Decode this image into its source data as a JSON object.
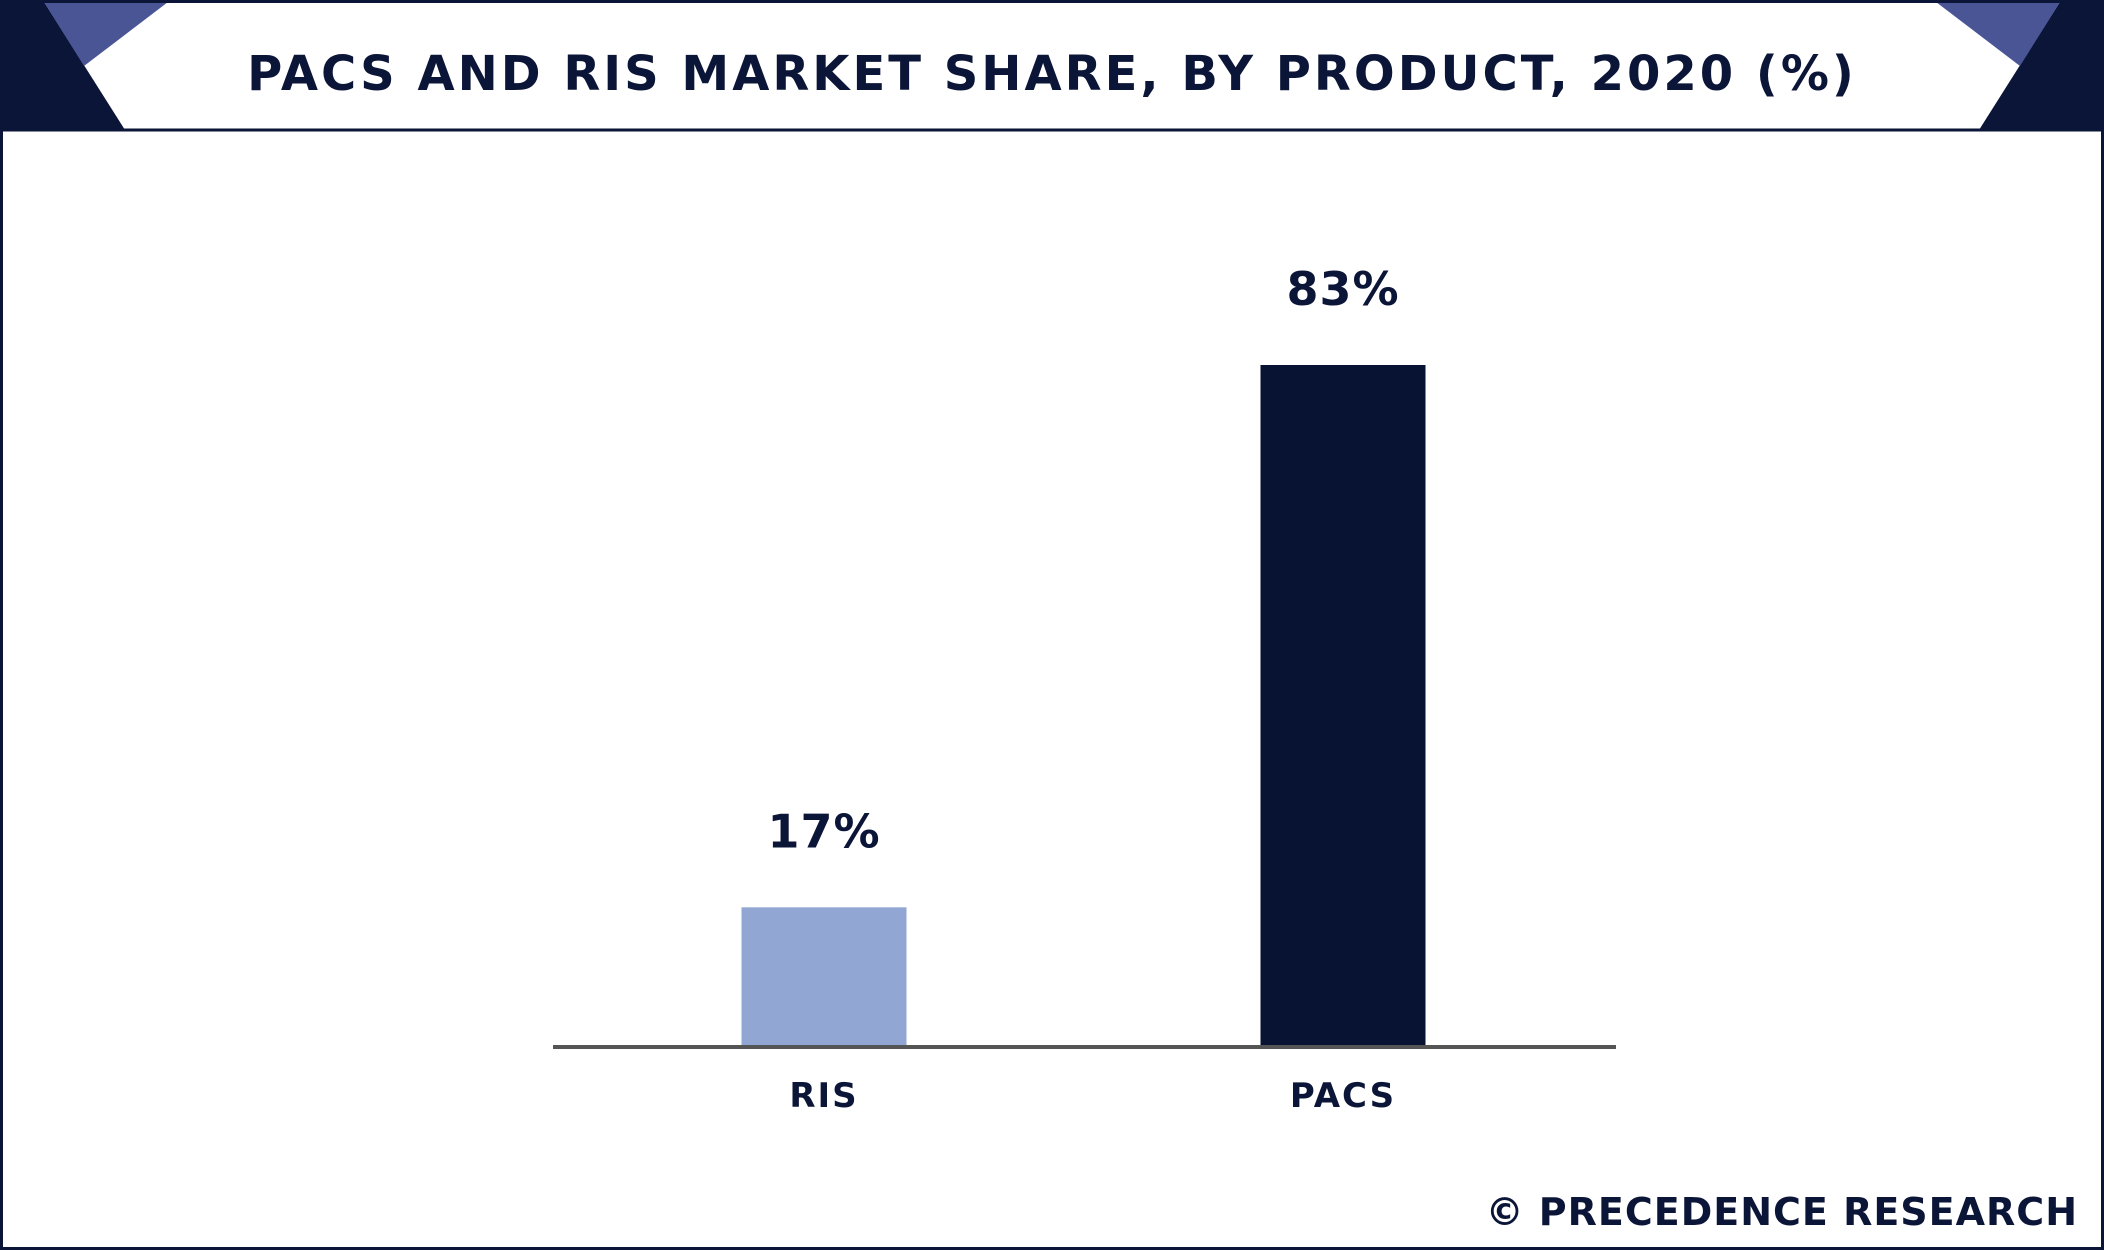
{
  "brand": {
    "credit": "© PRECEDENCE RESEARCH"
  },
  "colors": {
    "frame": "#0b1537",
    "corner_dark": "#0b1537",
    "corner_accent": "#4a5595",
    "title_text": "#0b1537",
    "axis": "#555555",
    "text": "#0b1537"
  },
  "chart_data": {
    "type": "bar",
    "title": "PACS AND RIS MARKET SHARE, BY PRODUCT, 2020 (%)",
    "categories": [
      "RIS",
      "PACS"
    ],
    "values": [
      17,
      83
    ],
    "value_labels": [
      "17%",
      "83%"
    ],
    "bar_colors": [
      "#91a6d3",
      "#081333"
    ],
    "xlabel": "",
    "ylabel": "",
    "ylim": [
      0,
      100
    ],
    "grid": false,
    "legend": "none"
  }
}
